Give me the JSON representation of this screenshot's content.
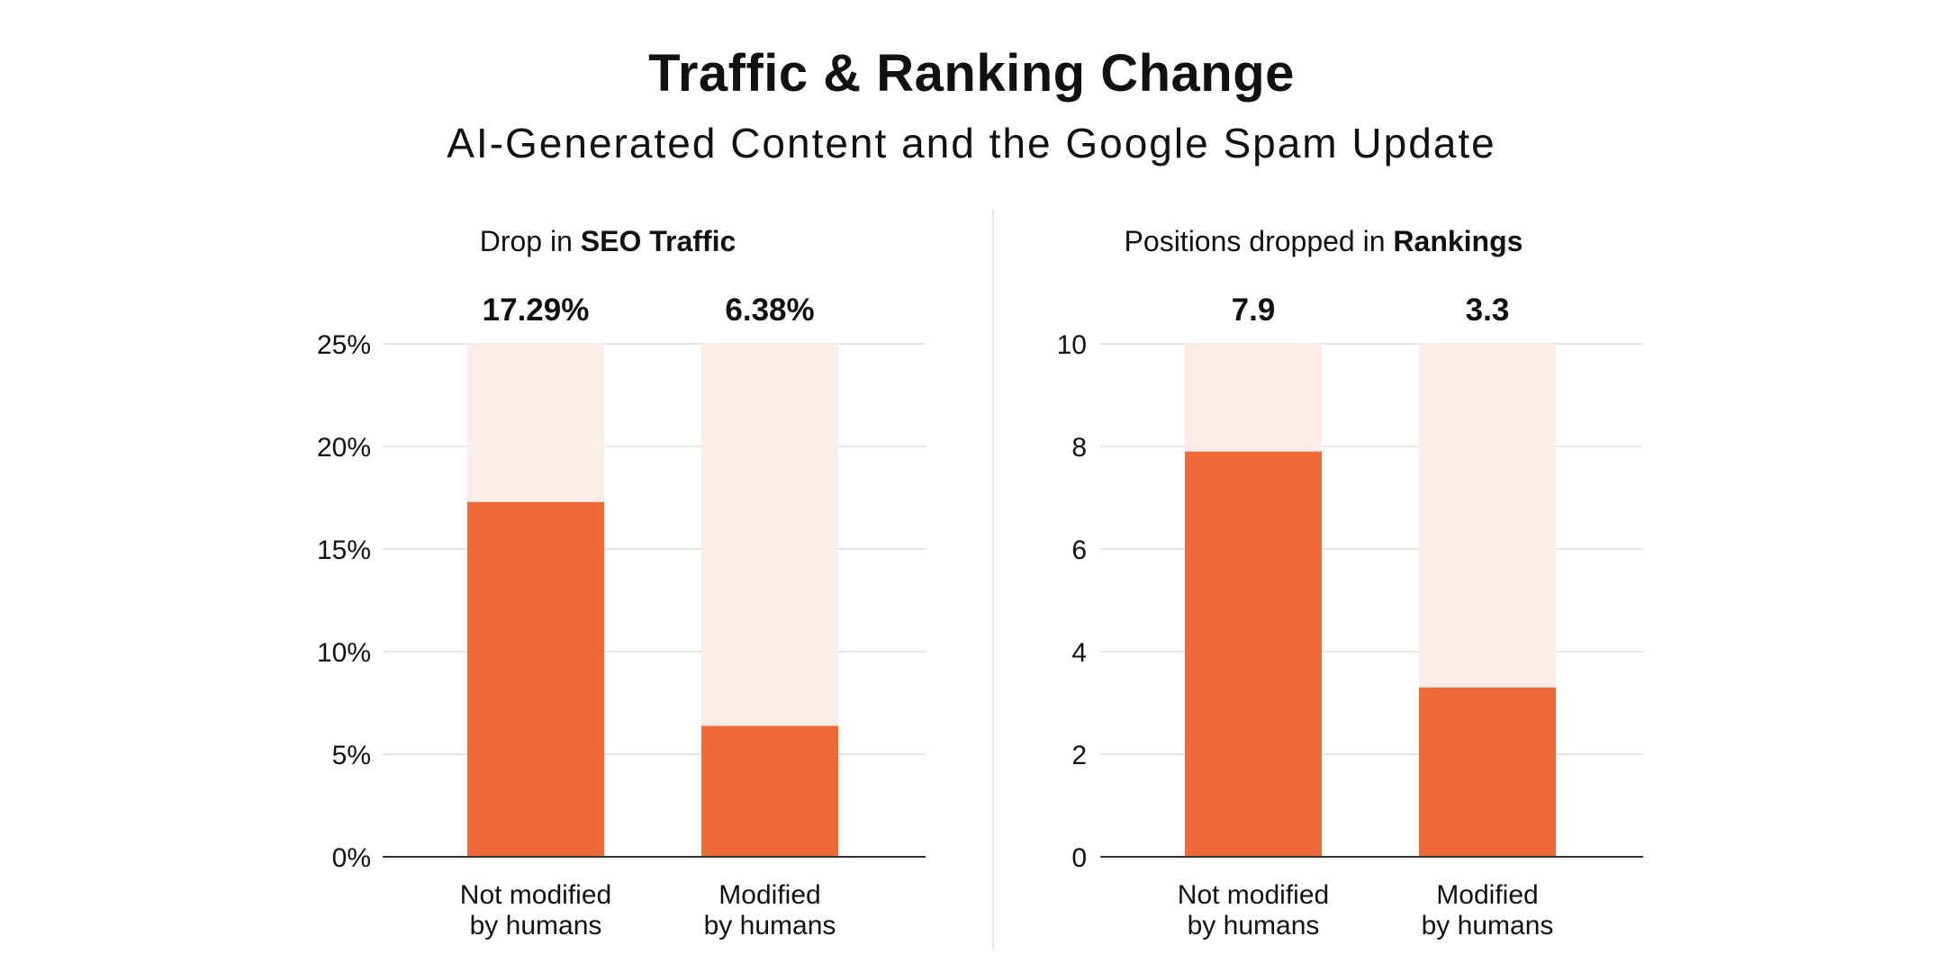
{
  "title": "Traffic & Ranking Change",
  "subtitle": "AI-Generated Content and the Google Spam Update",
  "colors": {
    "bar": "#EF6A36",
    "bar_background": "#FCECE8",
    "grid": "#e6e6e6",
    "axis": "#333333",
    "text": "#111111"
  },
  "panels": [
    {
      "title_prefix": "Drop in ",
      "title_bold": "SEO Traffic"
    },
    {
      "title_prefix": "Positions dropped in ",
      "title_bold": "Rankings"
    }
  ],
  "chart_data": [
    {
      "type": "bar",
      "title": "Drop in SEO Traffic",
      "categories": [
        "Not modified by humans",
        "Modified by humans"
      ],
      "category_lines": [
        [
          "Not modified",
          "by humans"
        ],
        [
          "Modified",
          "by humans"
        ]
      ],
      "values": [
        17.29,
        6.38
      ],
      "value_labels": [
        "17.29%",
        "6.38%"
      ],
      "ylim": [
        0,
        25
      ],
      "yticks": [
        0,
        5,
        10,
        15,
        20,
        25
      ],
      "ytick_labels": [
        "0%",
        "5%",
        "10%",
        "15%",
        "20%",
        "25%"
      ],
      "grid": true
    },
    {
      "type": "bar",
      "title": "Positions dropped in Rankings",
      "categories": [
        "Not modified by humans",
        "Modified by humans"
      ],
      "category_lines": [
        [
          "Not modified",
          "by humans"
        ],
        [
          "Modified",
          "by humans"
        ]
      ],
      "values": [
        7.9,
        3.3
      ],
      "value_labels": [
        "7.9",
        "3.3"
      ],
      "ylim": [
        0,
        10
      ],
      "yticks": [
        0,
        2,
        4,
        6,
        8,
        10
      ],
      "ytick_labels": [
        "0",
        "2",
        "4",
        "6",
        "8",
        "10"
      ],
      "grid": true
    }
  ]
}
